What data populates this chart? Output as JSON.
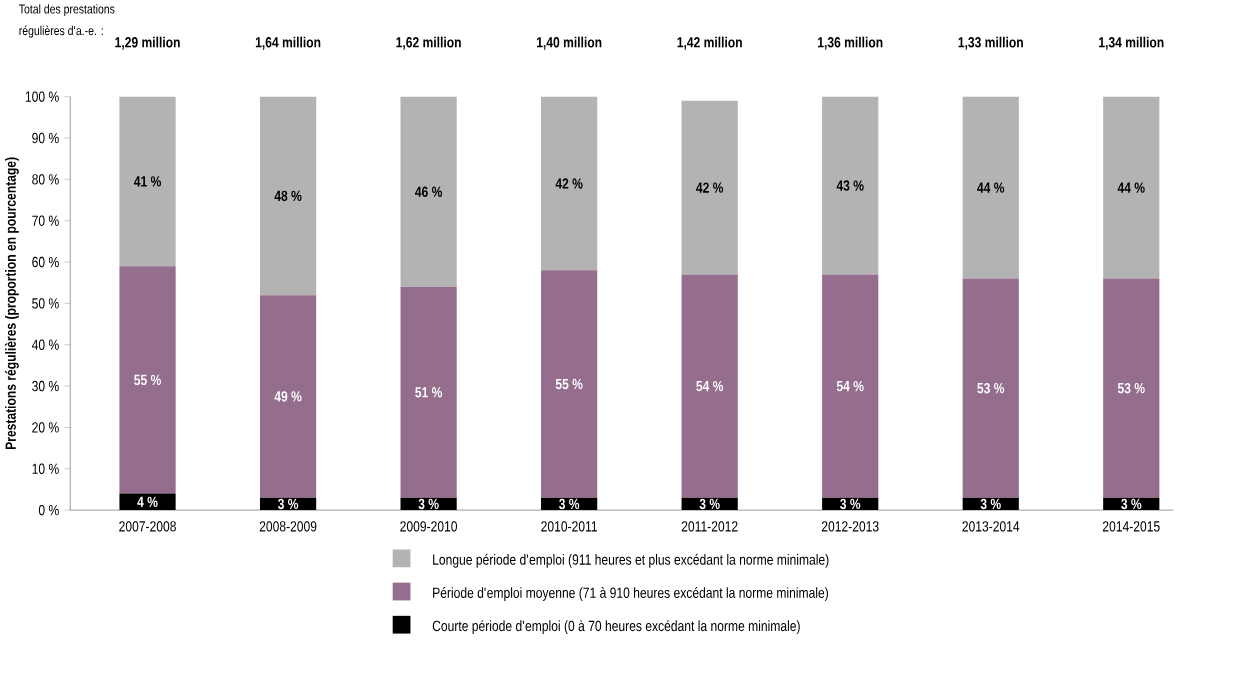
{
  "chart_data": {
    "type": "bar",
    "stacked": true,
    "legend": "bottom",
    "ylabel": "Prestations régulières (proportion en pourcentage)",
    "annotations": [
      "Total des prestations régulières d'a.-e. :",
      "1,29 million",
      "1,64 million",
      "1,62 million",
      "1,40 million",
      "1,42 million",
      "1,36 million",
      "1,33 million",
      "1,34 million"
    ],
    "categories": [
      "2007-2008",
      "2008-2009",
      "2009-2010",
      "2010-2011",
      "2011-2012",
      "2012-2013",
      "2013-2014",
      "2014-2015"
    ],
    "ylim": [
      0,
      100
    ],
    "yticks": [
      {
        "value": 0,
        "label": "0 %"
      },
      {
        "value": 10,
        "label": "10 %"
      },
      {
        "value": 20,
        "label": "20 %"
      },
      {
        "value": 30,
        "label": "30 %"
      },
      {
        "value": 40,
        "label": "40 %"
      },
      {
        "value": 50,
        "label": "50 %"
      },
      {
        "value": 60,
        "label": "60 %"
      },
      {
        "value": 70,
        "label": "70 %"
      },
      {
        "value": 80,
        "label": "80 %"
      },
      {
        "value": 90,
        "label": "90 %"
      },
      {
        "value": 100,
        "label": "100 %"
      }
    ],
    "series": [
      {
        "name": "Courte période d'emploi (0 à 70 heures excédant la norme minimale)",
        "color": "#000000",
        "values": [
          4,
          3,
          3,
          3,
          3,
          3,
          3,
          3
        ],
        "value_labels": [
          "4 %",
          "3 %",
          "3 %",
          "3 %",
          "3 %",
          "3 %",
          "3 %",
          "3 %"
        ]
      },
      {
        "name": "Période d'emploi moyenne (71 à 910 heures excédant la norme minimale)",
        "color": "#956e8e",
        "values": [
          55,
          49,
          51,
          55,
          54,
          54,
          53,
          53
        ],
        "value_labels": [
          "55 %",
          "49 %",
          "51 %",
          "55 %",
          "54 %",
          "54 %",
          "53 %",
          "53 %"
        ]
      },
      {
        "name": "Longue période d'emploi (911 heures et plus excédant la norme minimale)",
        "color": "#b3b3b3",
        "values": [
          41,
          48,
          46,
          42,
          42,
          43,
          44,
          44
        ],
        "value_labels": [
          "41 %",
          "48 %",
          "46 %",
          "42 %",
          "42 %",
          "43 %",
          "44 %",
          "44 %"
        ]
      }
    ]
  }
}
